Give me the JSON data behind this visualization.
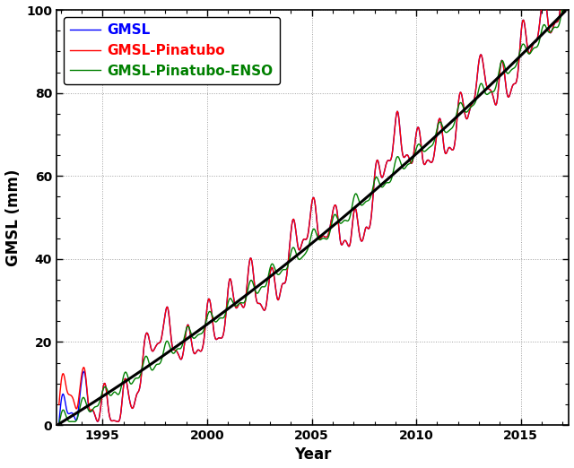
{
  "title": "",
  "xlabel": "Year",
  "ylabel": "GMSL (mm)",
  "xlim": [
    1992.8,
    2017.3
  ],
  "ylim": [
    0,
    100
  ],
  "xticks": [
    1995,
    2000,
    2005,
    2010,
    2015
  ],
  "yticks": [
    0,
    20,
    40,
    60,
    80,
    100
  ],
  "gmsl_color": "#0000ff",
  "pinatubo_color": "#ff0000",
  "enso_color": "#008000",
  "quad_color": "#000000",
  "quad_lw": 2.2,
  "line_lw": 1.0,
  "legend_labels": [
    "GMSL",
    "GMSL-Pinatubo",
    "GMSL-Pinatubo-ENSO"
  ],
  "legend_fontsize": 11,
  "axis_fontsize": 12,
  "tick_fontsize": 10,
  "quad_a": 0.042,
  "quad_b": 3.1,
  "quad_c": 0.5,
  "t0": 1993.0,
  "background_color": "#ffffff",
  "grid_color": "#888888",
  "grid_ls": ":"
}
